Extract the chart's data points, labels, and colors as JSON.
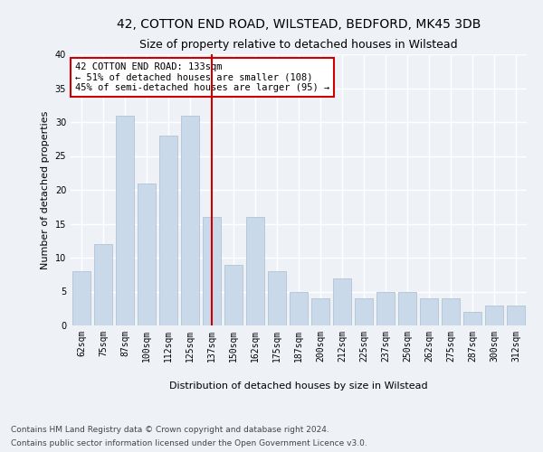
{
  "title1": "42, COTTON END ROAD, WILSTEAD, BEDFORD, MK45 3DB",
  "title2": "Size of property relative to detached houses in Wilstead",
  "xlabel": "Distribution of detached houses by size in Wilstead",
  "ylabel": "Number of detached properties",
  "categories": [
    "62sqm",
    "75sqm",
    "87sqm",
    "100sqm",
    "112sqm",
    "125sqm",
    "137sqm",
    "150sqm",
    "162sqm",
    "175sqm",
    "187sqm",
    "200sqm",
    "212sqm",
    "225sqm",
    "237sqm",
    "250sqm",
    "262sqm",
    "275sqm",
    "287sqm",
    "300sqm",
    "312sqm"
  ],
  "values": [
    8,
    12,
    31,
    21,
    28,
    31,
    16,
    9,
    16,
    8,
    5,
    4,
    7,
    4,
    5,
    5,
    4,
    4,
    2,
    3,
    3
  ],
  "bar_color": "#c9d9ea",
  "bar_edge_color": "#a8bece",
  "ref_line_x": 6,
  "ref_line_color": "#cc0000",
  "annotation_text": "42 COTTON END ROAD: 133sqm\n← 51% of detached houses are smaller (108)\n45% of semi-detached houses are larger (95) →",
  "annotation_box_color": "#ffffff",
  "annotation_box_edge": "#cc0000",
  "ylim": [
    0,
    40
  ],
  "yticks": [
    0,
    5,
    10,
    15,
    20,
    25,
    30,
    35,
    40
  ],
  "footer1": "Contains HM Land Registry data © Crown copyright and database right 2024.",
  "footer2": "Contains public sector information licensed under the Open Government Licence v3.0.",
  "bg_color": "#eef2f7",
  "plot_bg_color": "#eef2f7",
  "grid_color": "#ffffff",
  "title1_fontsize": 10,
  "title2_fontsize": 9,
  "axis_label_fontsize": 8,
  "tick_fontsize": 7,
  "annotation_fontsize": 7.5,
  "footer_fontsize": 6.5
}
